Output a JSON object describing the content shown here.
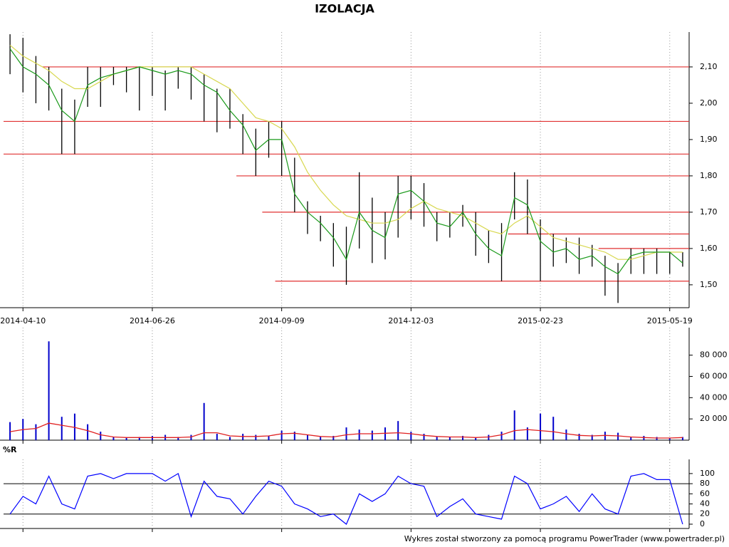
{
  "chart_data": [
    {
      "type": "hilo",
      "title": "IZOLACJA",
      "categories": [
        null,
        "2014-04-10",
        null,
        null,
        null,
        null,
        null,
        null,
        null,
        null,
        null,
        "2014-06-26",
        null,
        null,
        null,
        null,
        null,
        null,
        null,
        null,
        null,
        "2014-09-09",
        null,
        null,
        null,
        null,
        null,
        null,
        null,
        null,
        null,
        "2014-12-03",
        null,
        null,
        null,
        null,
        null,
        null,
        null,
        null,
        null,
        "2015-02-23",
        null,
        null,
        null,
        null,
        null,
        null,
        null,
        null,
        null,
        "2015-05-19",
        null
      ],
      "high": [
        2.19,
        2.18,
        2.13,
        2.1,
        2.04,
        2.01,
        2.1,
        2.1,
        2.1,
        2.1,
        2.1,
        2.1,
        2.09,
        2.1,
        2.1,
        2.08,
        2.04,
        2.04,
        1.97,
        1.93,
        1.95,
        1.95,
        1.85,
        1.73,
        1.69,
        1.67,
        1.66,
        1.81,
        1.74,
        1.7,
        1.8,
        1.8,
        1.78,
        1.7,
        1.7,
        1.72,
        1.7,
        1.65,
        1.67,
        1.81,
        1.79,
        1.68,
        1.64,
        1.63,
        1.63,
        1.61,
        1.58,
        1.56,
        1.6,
        1.6,
        1.6,
        1.59,
        1.59
      ],
      "low": [
        2.08,
        2.03,
        2.0,
        1.98,
        1.86,
        1.86,
        1.99,
        1.99,
        2.05,
        2.03,
        1.98,
        2.02,
        1.98,
        2.04,
        2.01,
        1.95,
        1.92,
        1.93,
        1.86,
        1.8,
        1.85,
        1.8,
        1.7,
        1.64,
        1.62,
        1.55,
        1.5,
        1.6,
        1.56,
        1.57,
        1.63,
        1.68,
        1.66,
        1.62,
        1.63,
        1.66,
        1.58,
        1.56,
        1.51,
        1.68,
        1.64,
        1.51,
        1.55,
        1.56,
        1.53,
        1.55,
        1.47,
        1.45,
        1.53,
        1.53,
        1.53,
        1.53,
        1.55
      ],
      "ma_short": [
        2.15,
        2.1,
        2.08,
        2.05,
        1.98,
        1.95,
        2.05,
        2.07,
        2.08,
        2.09,
        2.1,
        2.09,
        2.08,
        2.09,
        2.08,
        2.05,
        2.03,
        1.98,
        1.94,
        1.87,
        1.9,
        1.9,
        1.75,
        1.7,
        1.67,
        1.63,
        1.57,
        1.7,
        1.65,
        1.63,
        1.75,
        1.76,
        1.73,
        1.67,
        1.66,
        1.7,
        1.64,
        1.6,
        1.58,
        1.74,
        1.72,
        1.62,
        1.59,
        1.6,
        1.57,
        1.58,
        1.55,
        1.53,
        1.58,
        1.59,
        1.59,
        1.59,
        1.56
      ],
      "ma_long": [
        2.16,
        2.13,
        2.11,
        2.09,
        2.06,
        2.04,
        2.04,
        2.06,
        2.08,
        2.09,
        2.1,
        2.1,
        2.1,
        2.1,
        2.1,
        2.08,
        2.06,
        2.04,
        2.0,
        1.96,
        1.95,
        1.93,
        1.88,
        1.81,
        1.76,
        1.72,
        1.69,
        1.68,
        1.67,
        1.67,
        1.68,
        1.71,
        1.73,
        1.71,
        1.7,
        1.69,
        1.67,
        1.65,
        1.64,
        1.67,
        1.69,
        1.66,
        1.63,
        1.62,
        1.61,
        1.6,
        1.59,
        1.57,
        1.57,
        1.58,
        1.59,
        1.59,
        1.59
      ],
      "colors": {
        "bars": "#000000",
        "ma_short": "#1a9a1a",
        "ma_long": "#d8d850",
        "levels": "#e03030"
      },
      "levels": [
        {
          "value": 2.1,
          "start": 3
        },
        {
          "value": 1.95,
          "start": 0
        },
        {
          "value": 1.86,
          "start": 0
        },
        {
          "value": 1.8,
          "start": 18
        },
        {
          "value": 1.7,
          "start": 20
        },
        {
          "value": 1.64,
          "start": 39
        },
        {
          "value": 1.6,
          "start": 46
        },
        {
          "value": 1.51,
          "start": 21
        }
      ],
      "ylim": [
        1.437,
        2.196
      ],
      "yticks": [
        {
          "value": 1.5,
          "label": "1,50"
        },
        {
          "value": 1.6,
          "label": "1,60"
        },
        {
          "value": 1.7,
          "label": "1,70"
        },
        {
          "value": 1.8,
          "label": "1,80"
        },
        {
          "value": 1.9,
          "label": "1,90"
        },
        {
          "value": 2.0,
          "label": "2,00"
        },
        {
          "value": 2.1,
          "label": "2,10"
        }
      ],
      "grid": true
    },
    {
      "type": "bar",
      "values": [
        17000,
        20000,
        15000,
        93000,
        22000,
        25000,
        15000,
        8000,
        3000,
        2000,
        3000,
        4000,
        5000,
        3000,
        5000,
        35000,
        6000,
        3000,
        6000,
        5000,
        4000,
        9000,
        8000,
        5000,
        3000,
        4000,
        12000,
        10000,
        9000,
        12000,
        18000,
        8000,
        6000,
        3000,
        3000,
        4000,
        2000,
        5000,
        8000,
        28000,
        12000,
        25000,
        22000,
        10000,
        6000,
        5000,
        8000,
        7000,
        3000,
        4000,
        3000,
        2000,
        3000
      ],
      "average": [
        8000,
        10000,
        11000,
        16000,
        14000,
        12000,
        9000,
        5000,
        3000,
        2500,
        2500,
        2500,
        2500,
        2500,
        3000,
        7000,
        7000,
        4000,
        3500,
        3500,
        4000,
        6000,
        6500,
        5000,
        3500,
        3000,
        5000,
        6000,
        6000,
        6500,
        7000,
        6000,
        4500,
        3500,
        3000,
        3000,
        2500,
        3000,
        5000,
        9000,
        10000,
        9000,
        8000,
        6000,
        4500,
        4000,
        4500,
        4000,
        3000,
        2500,
        2000,
        2000,
        2500
      ],
      "color": "#0000cc",
      "average_color": "#e02020",
      "ylim": [
        0,
        105900
      ],
      "yticks": [
        {
          "value": 20000,
          "label": "20 000"
        },
        {
          "value": 40000,
          "label": "40 000"
        },
        {
          "value": 60000,
          "label": "60 000"
        },
        {
          "value": 80000,
          "label": "80 000"
        }
      ],
      "grid": true
    },
    {
      "type": "line",
      "title": "%R",
      "values": [
        20,
        55,
        40,
        95,
        40,
        30,
        95,
        100,
        90,
        100,
        100,
        100,
        85,
        100,
        15,
        85,
        55,
        50,
        20,
        55,
        85,
        75,
        40,
        30,
        15,
        20,
        0,
        60,
        45,
        60,
        95,
        80,
        75,
        15,
        35,
        50,
        20,
        15,
        10,
        95,
        80,
        30,
        40,
        55,
        25,
        60,
        30,
        20,
        95,
        100,
        88,
        88,
        0
      ],
      "color": "#0000ff",
      "ylim": [
        -8.5,
        128
      ],
      "yticks": [
        0,
        20,
        40,
        60,
        80,
        100
      ],
      "reference_lines": [
        20,
        80
      ],
      "grid": true
    }
  ],
  "footer": "Wykres został stworzony za pomocą programu PowerTrader (www.powertrader.pl)"
}
